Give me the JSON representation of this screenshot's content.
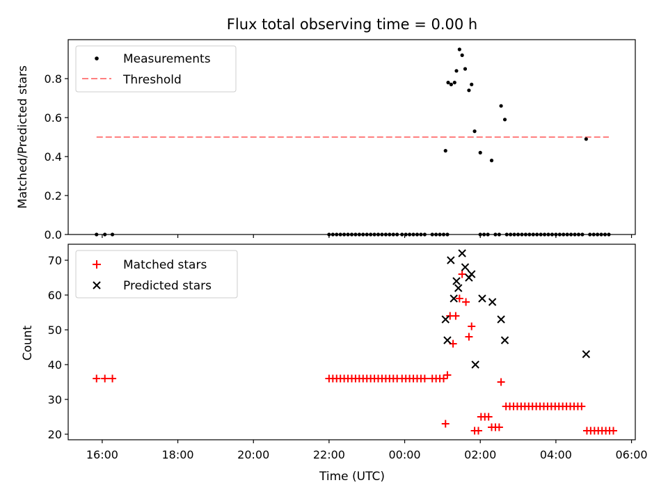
{
  "colors": {
    "measurement": "#000000",
    "threshold": "#ff7f7f",
    "matched": "#ff0000",
    "predicted": "#000000",
    "axes": "#000000"
  },
  "chart_data": [
    {
      "type": "scatter",
      "title": "Flux total observing time = 0.00 h",
      "xlabel": "",
      "ylabel": "Matched/Predicted stars",
      "xlim_hours": [
        15.1,
        30.1
      ],
      "ylim": [
        0,
        1.0
      ],
      "yticks": [
        0.0,
        0.2,
        0.4,
        0.6,
        0.8
      ],
      "ytick_labels": [
        "0.0",
        "0.2",
        "0.4",
        "0.6",
        "0.8"
      ],
      "legend": {
        "location": "top-left",
        "entries": [
          "Measurements",
          "Threshold"
        ]
      },
      "threshold": {
        "name": "Threshold",
        "value": 0.5,
        "x_range_hours": [
          15.85,
          29.4
        ]
      },
      "series": [
        {
          "name": "Measurements",
          "marker": "dot",
          "points": [
            [
              15.85,
              0
            ],
            [
              16.07,
              0
            ],
            [
              16.27,
              0
            ],
            [
              22.0,
              0
            ],
            [
              22.1,
              0
            ],
            [
              22.2,
              0
            ],
            [
              22.3,
              0
            ],
            [
              22.4,
              0
            ],
            [
              22.5,
              0
            ],
            [
              22.6,
              0
            ],
            [
              22.7,
              0
            ],
            [
              22.8,
              0
            ],
            [
              22.9,
              0
            ],
            [
              23.0,
              0
            ],
            [
              23.1,
              0
            ],
            [
              23.2,
              0
            ],
            [
              23.3,
              0
            ],
            [
              23.4,
              0
            ],
            [
              23.5,
              0
            ],
            [
              23.6,
              0
            ],
            [
              23.7,
              0
            ],
            [
              23.8,
              0
            ],
            [
              23.93,
              0
            ],
            [
              24.03,
              0
            ],
            [
              24.13,
              0
            ],
            [
              24.23,
              0
            ],
            [
              24.33,
              0
            ],
            [
              24.43,
              0
            ],
            [
              24.53,
              0
            ],
            [
              24.73,
              0
            ],
            [
              24.83,
              0
            ],
            [
              24.93,
              0
            ],
            [
              25.03,
              0
            ],
            [
              25.13,
              0
            ],
            [
              25.08,
              0.43
            ],
            [
              25.15,
              0.78
            ],
            [
              25.23,
              0.77
            ],
            [
              25.32,
              0.78
            ],
            [
              25.37,
              0.84
            ],
            [
              25.45,
              0.95
            ],
            [
              25.52,
              0.92
            ],
            [
              25.6,
              0.85
            ],
            [
              25.7,
              0.74
            ],
            [
              25.77,
              0.77
            ],
            [
              25.85,
              0.53
            ],
            [
              26.0,
              0.42
            ],
            [
              26.3,
              0.38
            ],
            [
              26.55,
              0.66
            ],
            [
              26.65,
              0.59
            ],
            [
              28.8,
              0.49
            ],
            [
              26.0,
              0
            ],
            [
              26.1,
              0
            ],
            [
              26.2,
              0
            ],
            [
              26.4,
              0
            ],
            [
              26.5,
              0
            ],
            [
              26.7,
              0
            ],
            [
              26.8,
              0
            ],
            [
              26.9,
              0
            ],
            [
              27.0,
              0
            ],
            [
              27.1,
              0
            ],
            [
              27.2,
              0
            ],
            [
              27.3,
              0
            ],
            [
              27.4,
              0
            ],
            [
              27.5,
              0
            ],
            [
              27.6,
              0
            ],
            [
              27.7,
              0
            ],
            [
              27.8,
              0
            ],
            [
              27.9,
              0
            ],
            [
              28.0,
              0
            ],
            [
              28.1,
              0
            ],
            [
              28.2,
              0
            ],
            [
              28.3,
              0
            ],
            [
              28.4,
              0
            ],
            [
              28.5,
              0
            ],
            [
              28.6,
              0
            ],
            [
              28.7,
              0
            ],
            [
              28.9,
              0
            ],
            [
              29.0,
              0
            ],
            [
              29.1,
              0
            ],
            [
              29.2,
              0
            ],
            [
              29.3,
              0
            ],
            [
              29.4,
              0
            ]
          ]
        }
      ]
    },
    {
      "type": "scatter",
      "title": "",
      "xlabel": "Time (UTC)",
      "ylabel": "Count",
      "xlim_hours": [
        15.1,
        30.1
      ],
      "ylim": [
        18.4,
        74.6
      ],
      "yticks": [
        20,
        30,
        40,
        50,
        60,
        70
      ],
      "ytick_labels": [
        "20",
        "30",
        "40",
        "50",
        "60",
        "70"
      ],
      "xticks_hours": [
        16,
        18,
        20,
        22,
        24,
        26,
        28,
        30
      ],
      "xtick_labels": [
        "16:00",
        "18:00",
        "20:00",
        "22:00",
        "00:00",
        "02:00",
        "04:00",
        "06:00"
      ],
      "legend": {
        "location": "top-left",
        "entries": [
          "Matched stars",
          "Predicted stars"
        ]
      },
      "series": [
        {
          "name": "Matched stars",
          "marker": "plus",
          "points": [
            [
              15.85,
              36
            ],
            [
              16.07,
              36
            ],
            [
              16.27,
              36
            ],
            [
              22.0,
              36
            ],
            [
              22.1,
              36
            ],
            [
              22.2,
              36
            ],
            [
              22.3,
              36
            ],
            [
              22.4,
              36
            ],
            [
              22.5,
              36
            ],
            [
              22.6,
              36
            ],
            [
              22.7,
              36
            ],
            [
              22.8,
              36
            ],
            [
              22.9,
              36
            ],
            [
              23.0,
              36
            ],
            [
              23.1,
              36
            ],
            [
              23.2,
              36
            ],
            [
              23.3,
              36
            ],
            [
              23.4,
              36
            ],
            [
              23.5,
              36
            ],
            [
              23.6,
              36
            ],
            [
              23.7,
              36
            ],
            [
              23.8,
              36
            ],
            [
              23.93,
              36
            ],
            [
              24.03,
              36
            ],
            [
              24.13,
              36
            ],
            [
              24.23,
              36
            ],
            [
              24.33,
              36
            ],
            [
              24.43,
              36
            ],
            [
              24.53,
              36
            ],
            [
              24.73,
              36
            ],
            [
              24.83,
              36
            ],
            [
              24.93,
              36
            ],
            [
              25.03,
              36
            ],
            [
              25.13,
              37
            ],
            [
              25.08,
              23
            ],
            [
              25.2,
              54
            ],
            [
              25.28,
              46
            ],
            [
              25.35,
              54
            ],
            [
              25.45,
              59
            ],
            [
              25.52,
              66
            ],
            [
              25.62,
              58
            ],
            [
              25.7,
              48
            ],
            [
              25.77,
              51
            ],
            [
              25.85,
              21
            ],
            [
              25.95,
              21
            ],
            [
              26.02,
              25
            ],
            [
              26.12,
              25
            ],
            [
              26.22,
              25
            ],
            [
              26.3,
              22
            ],
            [
              26.4,
              22
            ],
            [
              26.5,
              22
            ],
            [
              26.55,
              35
            ],
            [
              26.68,
              28
            ],
            [
              26.78,
              28
            ],
            [
              26.88,
              28
            ],
            [
              26.98,
              28
            ],
            [
              27.08,
              28
            ],
            [
              27.18,
              28
            ],
            [
              27.28,
              28
            ],
            [
              27.38,
              28
            ],
            [
              27.48,
              28
            ],
            [
              27.58,
              28
            ],
            [
              27.68,
              28
            ],
            [
              27.78,
              28
            ],
            [
              27.88,
              28
            ],
            [
              27.98,
              28
            ],
            [
              28.08,
              28
            ],
            [
              28.18,
              28
            ],
            [
              28.28,
              28
            ],
            [
              28.38,
              28
            ],
            [
              28.48,
              28
            ],
            [
              28.58,
              28
            ],
            [
              28.68,
              28
            ],
            [
              28.82,
              21
            ],
            [
              28.92,
              21
            ],
            [
              29.02,
              21
            ],
            [
              29.12,
              21
            ],
            [
              29.22,
              21
            ],
            [
              29.32,
              21
            ],
            [
              29.42,
              21
            ],
            [
              29.52,
              21
            ]
          ]
        },
        {
          "name": "Predicted stars",
          "marker": "x",
          "points": [
            [
              25.08,
              53
            ],
            [
              25.13,
              47
            ],
            [
              25.22,
              70
            ],
            [
              25.3,
              59
            ],
            [
              25.37,
              64
            ],
            [
              25.42,
              62
            ],
            [
              25.52,
              72
            ],
            [
              25.6,
              68
            ],
            [
              25.7,
              65
            ],
            [
              25.77,
              66
            ],
            [
              25.87,
              40
            ],
            [
              26.05,
              59
            ],
            [
              26.32,
              58
            ],
            [
              26.55,
              53
            ],
            [
              26.65,
              47
            ],
            [
              28.8,
              43
            ]
          ]
        }
      ]
    }
  ]
}
